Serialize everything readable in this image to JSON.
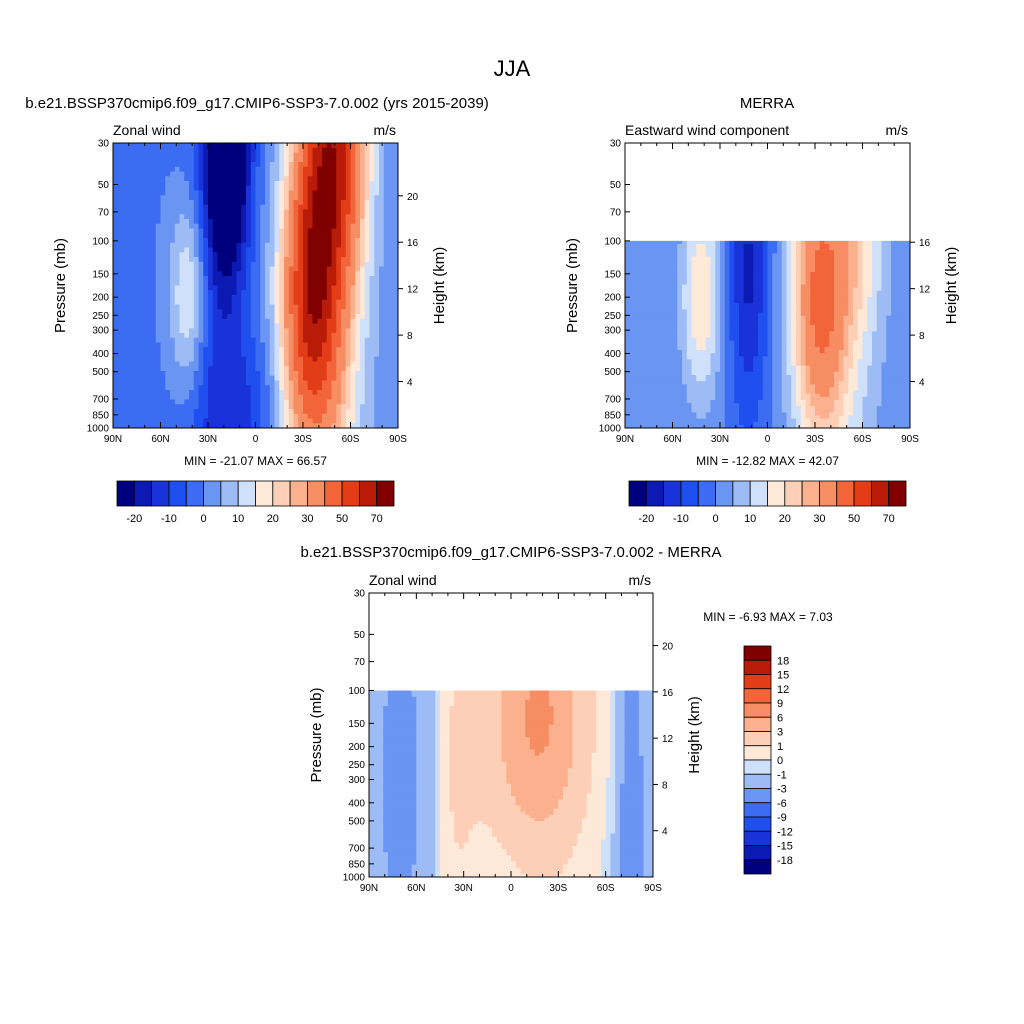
{
  "page_title": "JJA",
  "chart_data": [
    {
      "type": "heatmap",
      "id": "model",
      "title": "b.e21.BSSP370cmip6.f09_g17.CMIP6-SSP3-7.0.002 (yrs 2015-2039)",
      "left_label": "Zonal wind",
      "units": "m/s",
      "ylabel": "Pressure (mb)",
      "ylabel_right": "Height (km)",
      "x_ticks": [
        "90N",
        "60N",
        "30N",
        "0",
        "30S",
        "60S",
        "90S"
      ],
      "x_range": [
        90,
        -90
      ],
      "y_ticks": [
        "30",
        "50",
        "70",
        "100",
        "150",
        "200",
        "250",
        "300",
        "400",
        "500",
        "700",
        "850",
        "1000"
      ],
      "y_range_mb": [
        1000,
        30
      ],
      "height_ticks": [
        "4",
        "8",
        "12",
        "16",
        "20"
      ],
      "stats": "MIN = -21.07  MAX =  66.57",
      "min": -21.07,
      "max": 66.57,
      "data_top_mb": 30,
      "colorbar": {
        "orientation": "horizontal",
        "tick_labels": [
          "-20",
          "-10",
          "0",
          "10",
          "20",
          "30",
          "50",
          "70"
        ],
        "levels": [
          -25,
          -20,
          -15,
          -10,
          -5,
          0,
          5,
          10,
          15,
          20,
          25,
          30,
          40,
          50,
          60,
          70
        ]
      },
      "features": [
        {
          "lat": 42,
          "p": 200,
          "amp": 22,
          "sx": 9,
          "sy": 0.9
        },
        {
          "lat": 18,
          "p": 30,
          "amp": -38,
          "sx": 10,
          "sy": 1.1
        },
        {
          "lat": 30,
          "p": 400,
          "amp": -12,
          "sx": 16,
          "sy": 2.0
        },
        {
          "lat": -35,
          "p": 200,
          "amp": 50,
          "sx": 13,
          "sy": 1.3
        },
        {
          "lat": -50,
          "p": 30,
          "amp": 55,
          "sx": 14,
          "sy": 1.2
        },
        {
          "lat": -45,
          "p": 500,
          "amp": 18,
          "sx": 18,
          "sy": 1.8
        },
        {
          "lat": 5,
          "p": 850,
          "amp": -8,
          "sx": 15,
          "sy": 0.7
        }
      ]
    },
    {
      "type": "heatmap",
      "id": "obs",
      "title": "MERRA",
      "left_label": "Eastward wind component",
      "units": "m/s",
      "ylabel": "Pressure (mb)",
      "ylabel_right": "Height (km)",
      "x_ticks": [
        "90N",
        "60N",
        "30N",
        "0",
        "30S",
        "60S",
        "90S"
      ],
      "x_range": [
        90,
        -90
      ],
      "y_ticks": [
        "30",
        "50",
        "70",
        "100",
        "150",
        "200",
        "250",
        "300",
        "400",
        "500",
        "700",
        "850",
        "1000"
      ],
      "y_range_mb": [
        1000,
        30
      ],
      "height_ticks": [
        "4",
        "8",
        "12",
        "16"
      ],
      "stats": "MIN = -12.82  MAX =  42.07",
      "min": -12.82,
      "max": 42.07,
      "data_top_mb": 100,
      "colorbar": {
        "orientation": "horizontal",
        "tick_labels": [
          "-20",
          "-10",
          "0",
          "10",
          "20",
          "30",
          "50",
          "70"
        ],
        "levels": [
          -25,
          -20,
          -15,
          -10,
          -5,
          0,
          5,
          10,
          15,
          20,
          25,
          30,
          40,
          50,
          60,
          70
        ]
      },
      "features": [
        {
          "lat": 42,
          "p": 200,
          "amp": 20,
          "sx": 9,
          "sy": 0.9
        },
        {
          "lat": 12,
          "p": 150,
          "amp": -16,
          "sx": 9,
          "sy": 1.3
        },
        {
          "lat": -32,
          "p": 200,
          "amp": 34,
          "sx": 12,
          "sy": 1.2
        },
        {
          "lat": -55,
          "p": 100,
          "amp": 14,
          "sx": 14,
          "sy": 0.9
        },
        {
          "lat": -45,
          "p": 500,
          "amp": 12,
          "sx": 18,
          "sy": 1.8
        }
      ]
    },
    {
      "type": "heatmap",
      "id": "diff",
      "title": "b.e21.BSSP370cmip6.f09_g17.CMIP6-SSP3-7.0.002 - MERRA",
      "left_label": "Zonal wind",
      "units": "m/s",
      "ylabel": "Pressure (mb)",
      "ylabel_right": "Height (km)",
      "x_ticks": [
        "90N",
        "60N",
        "30N",
        "0",
        "30S",
        "60S",
        "90S"
      ],
      "x_range": [
        90,
        -90
      ],
      "y_ticks": [
        "30",
        "50",
        "70",
        "100",
        "150",
        "200",
        "250",
        "300",
        "400",
        "500",
        "700",
        "850",
        "1000"
      ],
      "y_range_mb": [
        1000,
        30
      ],
      "height_ticks": [
        "4",
        "8",
        "12",
        "16",
        "20"
      ],
      "stats": "MIN =  -6.93  MAX =   7.03",
      "min": -6.93,
      "max": 7.03,
      "data_top_mb": 100,
      "colorbar": {
        "orientation": "vertical",
        "tick_labels": [
          "18",
          "15",
          "12",
          "9",
          "6",
          "3",
          "1",
          "0",
          "-1",
          "-3",
          "-6",
          "-9",
          "-12",
          "-15",
          "-18"
        ],
        "levels": [
          -18,
          -15,
          -12,
          -9,
          -6,
          -3,
          -1,
          0,
          1,
          3,
          6,
          9,
          12,
          15,
          18
        ]
      },
      "features": [
        {
          "lat": -20,
          "p": 120,
          "amp": 6.5,
          "sx": 22,
          "sy": 1.2
        },
        {
          "lat": -10,
          "p": 300,
          "amp": 3.5,
          "sx": 28,
          "sy": 2.0
        },
        {
          "lat": 35,
          "p": 250,
          "amp": 2.5,
          "sx": 10,
          "sy": 1.8
        },
        {
          "lat": 70,
          "p": 300,
          "amp": -2.2,
          "sx": 8,
          "sy": 2.5
        },
        {
          "lat": -75,
          "p": 500,
          "amp": -2.0,
          "sx": 8,
          "sy": 2.5
        },
        {
          "lat": 48,
          "p": 200,
          "amp": -1.8,
          "sx": 5,
          "sy": 1.5
        },
        {
          "lat": -5,
          "p": 900,
          "amp": -1.2,
          "sx": 20,
          "sy": 0.5
        }
      ]
    }
  ],
  "colors": {
    "cmap_16": [
      "#00007f",
      "#0a1ab2",
      "#1a33d9",
      "#1f4fef",
      "#3c6cf2",
      "#6a95f2",
      "#9dbcf6",
      "#cfe0fb",
      "#fee8d8",
      "#fdcfb6",
      "#fbb08e",
      "#f78d62",
      "#f2653b",
      "#e33d18",
      "#b81c08",
      "#800000"
    ],
    "cmap_diff": [
      "#00007f",
      "#0a1ab2",
      "#1a33d9",
      "#1f4fef",
      "#3c6cf2",
      "#6a95f2",
      "#9dbcf6",
      "#cfe0fb",
      "#fee8d8",
      "#fdcfb6",
      "#fbb08e",
      "#f78d62",
      "#f2653b",
      "#e33d18",
      "#b81c08",
      "#800000"
    ]
  }
}
